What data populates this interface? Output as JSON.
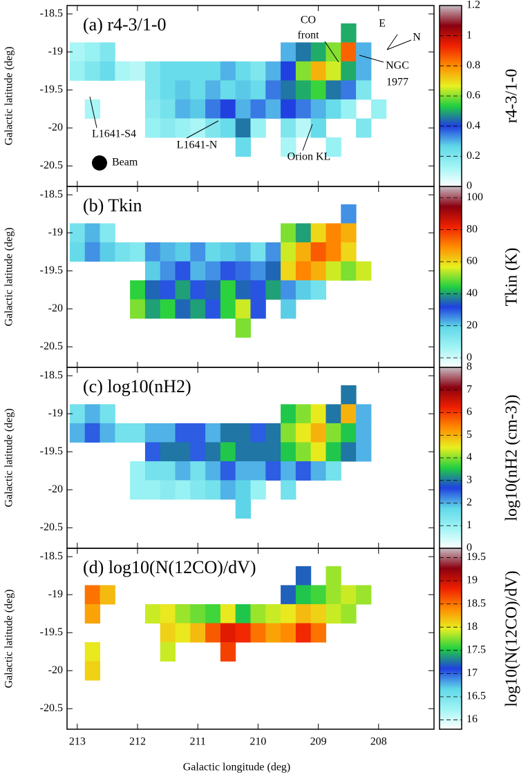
{
  "chart_data": [
    {
      "type": "heatmap",
      "title": "(a) r4-3/1-0",
      "ylabel": "Galactic latitude (deg)",
      "colorbar_label": "r4-3/1-0",
      "x": [
        213,
        212.75,
        212.5,
        212.25,
        212,
        211.75,
        211.5,
        211.25,
        211,
        210.75,
        210.5,
        210.25,
        210,
        209.75,
        209.5,
        209.25,
        209,
        208.75,
        208.5,
        208.25,
        208
      ],
      "y": [
        -18.75,
        -19,
        -19.25,
        -19.5,
        -19.75,
        -20,
        -20.25
      ],
      "z": [
        [
          null,
          null,
          null,
          null,
          null,
          null,
          null,
          null,
          null,
          null,
          null,
          null,
          null,
          null,
          null,
          null,
          null,
          null,
          0.5,
          null,
          null
        ],
        [
          0.12,
          0.15,
          0.2,
          null,
          null,
          null,
          null,
          null,
          null,
          null,
          null,
          null,
          null,
          null,
          0.3,
          0.45,
          0.5,
          0.6,
          0.85,
          0.3,
          null
        ],
        [
          0.15,
          0.2,
          0.25,
          0.12,
          0.1,
          0.2,
          0.25,
          0.25,
          0.25,
          0.25,
          0.3,
          0.25,
          0.2,
          0.3,
          0.4,
          0.6,
          0.75,
          0.65,
          0.5,
          0.3,
          null
        ],
        [
          null,
          null,
          null,
          null,
          null,
          0.2,
          0.25,
          0.28,
          0.25,
          0.3,
          0.25,
          0.28,
          0.25,
          0.35,
          0.45,
          0.5,
          0.55,
          0.45,
          0.35,
          0.2,
          null
        ],
        [
          null,
          0.12,
          null,
          null,
          null,
          0.18,
          0.22,
          0.3,
          0.28,
          0.35,
          0.4,
          0.3,
          0.35,
          0.3,
          0.4,
          0.35,
          0.3,
          0.25,
          0.15,
          null,
          0.15
        ],
        [
          null,
          null,
          null,
          null,
          null,
          0.15,
          0.18,
          0.15,
          0.12,
          0.2,
          0.25,
          0.45,
          0.15,
          null,
          0.2,
          0.1,
          0.25,
          null,
          null,
          0.2,
          null
        ],
        [
          null,
          null,
          null,
          null,
          null,
          null,
          null,
          null,
          null,
          null,
          null,
          0.25,
          null,
          null,
          0.12,
          null,
          null,
          0.15,
          null,
          null,
          null
        ]
      ],
      "xlim": [
        213.17,
        207.08
      ],
      "ylim": [
        -20.77,
        -18.39
      ],
      "xticks": [
        213,
        212,
        211,
        210,
        209,
        208
      ],
      "yticks": [
        -18.5,
        -19,
        -19.5,
        -20,
        -20.5
      ],
      "zlim": [
        0,
        1.2
      ],
      "zticks": [
        0,
        0.2,
        0.4,
        0.6,
        0.8,
        1,
        1.2
      ],
      "annotations": [
        "CO",
        "front",
        "NGC",
        "1977",
        "Orion KL",
        "L1641-S4",
        "L1641-N",
        "Beam",
        "E",
        "N"
      ]
    },
    {
      "type": "heatmap",
      "title": "(b) Tkin",
      "ylabel": "Galactic latitude (deg)",
      "colorbar_label": "Tkin (K)",
      "x": [
        213,
        212.75,
        212.5,
        212.25,
        212,
        211.75,
        211.5,
        211.25,
        211,
        210.75,
        210.5,
        210.25,
        210,
        209.75,
        209.5,
        209.25,
        209,
        208.75,
        208.5,
        208.25,
        208
      ],
      "y": [
        -18.75,
        -19,
        -19.25,
        -19.5,
        -19.75,
        -20,
        -20.25
      ],
      "z": [
        [
          null,
          null,
          null,
          null,
          null,
          null,
          null,
          null,
          null,
          null,
          null,
          null,
          null,
          null,
          null,
          null,
          null,
          null,
          25,
          null,
          null
        ],
        [
          15,
          22,
          12,
          null,
          null,
          null,
          null,
          null,
          null,
          null,
          null,
          null,
          null,
          null,
          50,
          40,
          60,
          70,
          65,
          null,
          null
        ],
        [
          18,
          25,
          20,
          15,
          12,
          25,
          22,
          20,
          25,
          18,
          20,
          22,
          15,
          25,
          55,
          65,
          75,
          70,
          60,
          null,
          null
        ],
        [
          null,
          null,
          null,
          null,
          null,
          20,
          25,
          30,
          22,
          25,
          30,
          28,
          25,
          35,
          60,
          70,
          65,
          55,
          50,
          55,
          null
        ],
        [
          null,
          null,
          null,
          null,
          45,
          35,
          30,
          40,
          30,
          35,
          45,
          35,
          30,
          40,
          25,
          20,
          15,
          null,
          null,
          null,
          null
        ],
        [
          null,
          null,
          null,
          null,
          50,
          40,
          45,
          35,
          40,
          30,
          45,
          55,
          30,
          null,
          20,
          null,
          null,
          null,
          null,
          null,
          null
        ],
        [
          null,
          null,
          null,
          null,
          null,
          null,
          null,
          null,
          null,
          null,
          null,
          50,
          null,
          null,
          null,
          null,
          null,
          null,
          null,
          null,
          null
        ]
      ],
      "xlim": [
        213.17,
        207.08
      ],
      "ylim": [
        -20.77,
        -18.39
      ],
      "xticks": [
        213,
        212,
        211,
        210,
        209,
        208
      ],
      "yticks": [
        -18.5,
        -19,
        -19.5,
        -20,
        -20.5
      ],
      "zlim": [
        -6,
        107
      ],
      "zticks": [
        0,
        20,
        40,
        60,
        80,
        100
      ]
    },
    {
      "type": "heatmap",
      "title": "(c) log10(nH2)",
      "ylabel": "Galactic latitude (deg)",
      "colorbar_label": "log10(nH2 (cm-3))",
      "x": [
        213,
        212.75,
        212.5,
        212.25,
        212,
        211.75,
        211.5,
        211.25,
        211,
        210.75,
        210.5,
        210.25,
        210,
        209.75,
        209.5,
        209.25,
        209,
        208.75,
        208.5,
        208.25,
        208
      ],
      "y": [
        -18.75,
        -19,
        -19.25,
        -19.5,
        -19.75,
        -20,
        -20.25
      ],
      "z": [
        [
          null,
          null,
          null,
          null,
          null,
          null,
          null,
          null,
          null,
          null,
          null,
          null,
          null,
          null,
          null,
          null,
          null,
          null,
          3,
          null,
          null
        ],
        [
          1.5,
          2,
          1.5,
          null,
          null,
          null,
          null,
          null,
          null,
          null,
          null,
          null,
          null,
          null,
          3.5,
          4,
          4.5,
          3,
          5,
          2,
          null
        ],
        [
          2,
          2.5,
          2,
          1.5,
          1.5,
          2,
          2,
          2.5,
          2.5,
          2,
          3,
          3,
          2.5,
          3,
          4,
          4.5,
          5,
          4,
          3.5,
          2,
          null
        ],
        [
          null,
          null,
          null,
          null,
          null,
          2.5,
          3,
          3,
          2.5,
          3,
          3.5,
          3,
          3,
          3,
          3.5,
          4,
          4.5,
          3.5,
          3,
          2,
          null
        ],
        [
          null,
          null,
          null,
          null,
          1,
          1.5,
          1.5,
          2,
          1.5,
          2,
          2.5,
          2,
          2,
          2.5,
          2,
          2.5,
          2,
          1.5,
          null,
          null,
          null
        ],
        [
          null,
          null,
          null,
          null,
          1,
          1,
          1.2,
          1,
          1.3,
          1.5,
          2,
          1.8,
          1,
          null,
          1.5,
          null,
          null,
          null,
          null,
          null,
          null
        ],
        [
          null,
          null,
          null,
          null,
          null,
          null,
          null,
          null,
          null,
          null,
          null,
          1.8,
          null,
          null,
          null,
          null,
          null,
          null,
          null,
          null,
          null
        ]
      ],
      "xlim": [
        213.17,
        207.08
      ],
      "ylim": [
        -20.77,
        -18.39
      ],
      "xticks": [
        213,
        212,
        211,
        210,
        209,
        208
      ],
      "yticks": [
        -18.5,
        -19,
        -19.5,
        -20,
        -20.5
      ],
      "zlim": [
        0,
        8
      ],
      "zticks": [
        0,
        1,
        2,
        3,
        4,
        5,
        6,
        7,
        8
      ]
    },
    {
      "type": "heatmap",
      "title": "(d) log10(N(12CO)/dV)",
      "ylabel": "Galactic latitude (deg)",
      "xlabel": "Galactic longitude (deg)",
      "colorbar_label": "log10(N(12CO)/dV)",
      "x": [
        213,
        212.75,
        212.5,
        212.25,
        212,
        211.75,
        211.5,
        211.25,
        211,
        210.75,
        210.5,
        210.25,
        210,
        209.75,
        209.5,
        209.25,
        209,
        208.75,
        208.5,
        208.25,
        208
      ],
      "y": [
        -18.75,
        -19,
        -19.25,
        -19.5,
        -19.75,
        -20,
        -20.25
      ],
      "z": [
        [
          null,
          null,
          null,
          null,
          null,
          null,
          null,
          null,
          null,
          null,
          null,
          null,
          null,
          null,
          null,
          17.2,
          null,
          17.8,
          null,
          null,
          null
        ],
        [
          null,
          18.5,
          18.2,
          null,
          null,
          null,
          null,
          null,
          null,
          null,
          null,
          null,
          null,
          null,
          17.2,
          17.5,
          17.6,
          17.8,
          17.9,
          17.8,
          null
        ],
        [
          null,
          18.3,
          null,
          null,
          null,
          17.9,
          18,
          17.8,
          17.7,
          17.6,
          18,
          17.5,
          17.8,
          17.9,
          18,
          18.2,
          18.1,
          17.9,
          17.8,
          null,
          null
        ],
        [
          null,
          null,
          null,
          null,
          null,
          null,
          18.1,
          18,
          18.2,
          18.6,
          18.9,
          18.8,
          18.5,
          18.3,
          18.4,
          18.8,
          18.5,
          null,
          null,
          null,
          null
        ],
        [
          null,
          18,
          null,
          null,
          null,
          null,
          17.9,
          null,
          null,
          null,
          18.7,
          null,
          null,
          null,
          null,
          null,
          null,
          null,
          null,
          null,
          null
        ],
        [
          null,
          18.1,
          null,
          null,
          null,
          null,
          null,
          null,
          null,
          null,
          null,
          null,
          null,
          null,
          null,
          null,
          null,
          null,
          null,
          null,
          null
        ],
        [
          null,
          null,
          null,
          null,
          null,
          null,
          null,
          null,
          null,
          null,
          null,
          null,
          null,
          null,
          null,
          null,
          null,
          null,
          null,
          null,
          null
        ]
      ],
      "xlim": [
        213.17,
        207.08
      ],
      "ylim": [
        -20.77,
        -18.39
      ],
      "xticks": [
        213,
        212,
        211,
        210,
        209,
        208
      ],
      "yticks": [
        -18.5,
        -19,
        -19.5,
        -20,
        -20.5
      ],
      "zlim": [
        15.8,
        19.7
      ],
      "zticks": [
        16,
        16.5,
        17,
        17.5,
        18,
        18.5,
        19,
        19.5
      ]
    }
  ],
  "colormap": [
    "#ffffff",
    "#a0f4f4",
    "#60d8e8",
    "#2040e0",
    "#20d040",
    "#e8f020",
    "#ff8c00",
    "#f02000",
    "#8a0010",
    "#c8bcc4"
  ]
}
